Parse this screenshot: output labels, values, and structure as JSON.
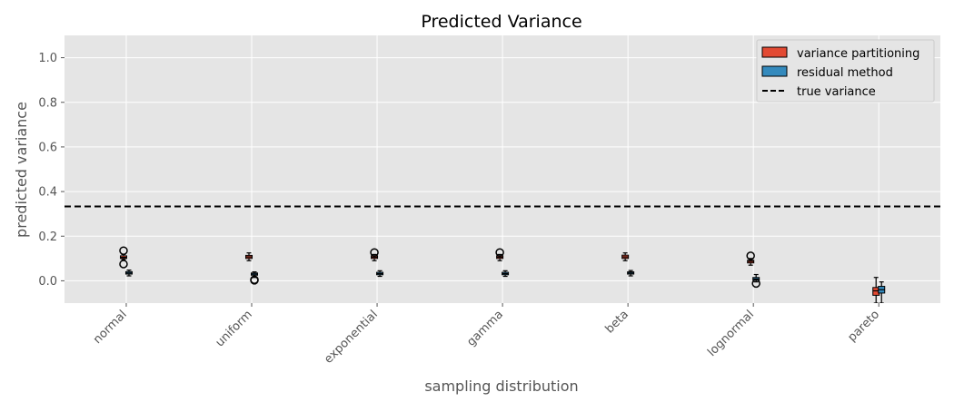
{
  "chart_data": {
    "type": "box",
    "title": "Predicted Variance",
    "xlabel": "sampling distribution",
    "ylabel": "predicted variance",
    "ylim": [
      -0.1,
      1.1
    ],
    "yticks": [
      0.0,
      0.2,
      0.4,
      0.6,
      0.8,
      1.0
    ],
    "ytick_labels": [
      "0.0",
      "0.2",
      "0.4",
      "0.6",
      "0.8",
      "1.0"
    ],
    "categories": [
      "normal",
      "uniform",
      "exponential",
      "gamma",
      "beta",
      "lognormal",
      "pareto"
    ],
    "true_variance": 0.333,
    "grid": true,
    "legend_position": "top-right",
    "series": [
      {
        "name": "variance partitioning",
        "color": "#E24A33",
        "boxes": [
          {
            "whislo": 0.095,
            "q1": 0.1,
            "med": 0.105,
            "q3": 0.112,
            "whishi": 0.118,
            "fliers": [
              0.135,
              0.075
            ]
          },
          {
            "whislo": 0.09,
            "q1": 0.1,
            "med": 0.107,
            "q3": 0.114,
            "whishi": 0.125,
            "fliers": []
          },
          {
            "whislo": 0.09,
            "q1": 0.1,
            "med": 0.106,
            "q3": 0.112,
            "whishi": 0.118,
            "fliers": [
              0.127
            ]
          },
          {
            "whislo": 0.09,
            "q1": 0.1,
            "med": 0.106,
            "q3": 0.112,
            "whishi": 0.118,
            "fliers": [
              0.127
            ]
          },
          {
            "whislo": 0.09,
            "q1": 0.1,
            "med": 0.107,
            "q3": 0.115,
            "whishi": 0.125,
            "fliers": []
          },
          {
            "whislo": 0.07,
            "q1": 0.08,
            "med": 0.087,
            "q3": 0.092,
            "whishi": 0.1,
            "fliers": [
              0.112
            ]
          },
          {
            "whislo": -0.1,
            "q1": -0.065,
            "med": -0.045,
            "q3": -0.03,
            "whishi": 0.015,
            "fliers": []
          }
        ]
      },
      {
        "name": "residual method",
        "color": "#348ABD",
        "boxes": [
          {
            "whislo": 0.022,
            "q1": 0.03,
            "med": 0.035,
            "q3": 0.041,
            "whishi": 0.048,
            "fliers": []
          },
          {
            "whislo": 0.015,
            "q1": 0.025,
            "med": 0.03,
            "q3": 0.035,
            "whishi": 0.04,
            "fliers": [
              0.005,
              0.002
            ]
          },
          {
            "whislo": 0.02,
            "q1": 0.027,
            "med": 0.032,
            "q3": 0.038,
            "whishi": 0.045,
            "fliers": []
          },
          {
            "whislo": 0.02,
            "q1": 0.027,
            "med": 0.032,
            "q3": 0.038,
            "whishi": 0.045,
            "fliers": []
          },
          {
            "whislo": 0.022,
            "q1": 0.03,
            "med": 0.035,
            "q3": 0.04,
            "whishi": 0.046,
            "fliers": []
          },
          {
            "whislo": -0.005,
            "q1": 0.002,
            "med": 0.008,
            "q3": 0.015,
            "whishi": 0.028,
            "fliers": [
              -0.012
            ]
          },
          {
            "whislo": -0.1,
            "q1": -0.055,
            "med": -0.04,
            "q3": -0.025,
            "whishi": -0.005,
            "fliers": []
          }
        ]
      }
    ],
    "legend": [
      {
        "label": "variance partitioning",
        "kind": "patch",
        "color": "#E24A33"
      },
      {
        "label": "residual method",
        "kind": "patch",
        "color": "#348ABD"
      },
      {
        "label": "true variance",
        "kind": "dashed-line",
        "color": "#000000"
      }
    ]
  }
}
